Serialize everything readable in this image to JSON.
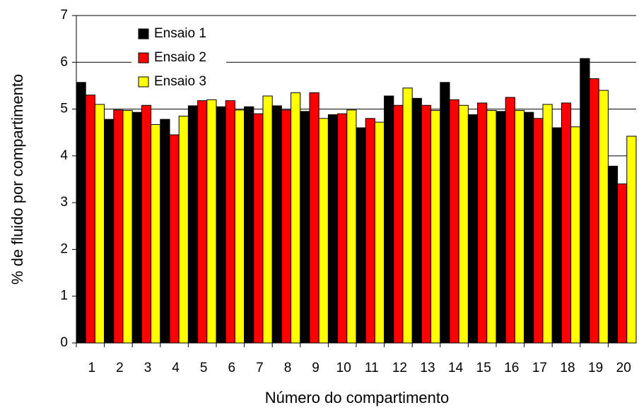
{
  "chart_data": {
    "type": "bar",
    "x_label": "Número do compartimento",
    "y_label": "% de fluido por compartimento",
    "categories": [
      "1",
      "2",
      "3",
      "4",
      "5",
      "6",
      "7",
      "8",
      "9",
      "10",
      "11",
      "12",
      "13",
      "14",
      "15",
      "16",
      "17",
      "18",
      "19",
      "20"
    ],
    "series": [
      {
        "name": "Ensaio 1",
        "color": "#000000",
        "values": [
          5.57,
          4.78,
          4.93,
          4.78,
          5.07,
          5.05,
          5.05,
          5.07,
          4.95,
          4.88,
          4.6,
          5.28,
          5.23,
          5.57,
          4.88,
          4.95,
          4.93,
          4.6,
          6.08,
          3.78
        ]
      },
      {
        "name": "Ensaio 2",
        "color": "#ff0000",
        "values": [
          5.3,
          4.98,
          5.08,
          4.45,
          5.18,
          5.18,
          4.9,
          4.98,
          5.35,
          4.9,
          4.8,
          5.08,
          5.08,
          5.2,
          5.13,
          5.25,
          4.8,
          5.13,
          5.65,
          3.4
        ]
      },
      {
        "name": "Ensaio 3",
        "color": "#ffff00",
        "values": [
          5.1,
          4.97,
          4.67,
          4.85,
          5.2,
          4.98,
          5.28,
          5.35,
          4.8,
          4.98,
          4.72,
          5.45,
          4.97,
          5.08,
          4.97,
          4.97,
          5.1,
          4.62,
          5.4,
          4.42
        ]
      }
    ],
    "ylim": [
      0,
      7
    ],
    "yticks": [
      0,
      1,
      2,
      3,
      4,
      5,
      6,
      7
    ],
    "grid": true,
    "legend": "upper-left"
  }
}
